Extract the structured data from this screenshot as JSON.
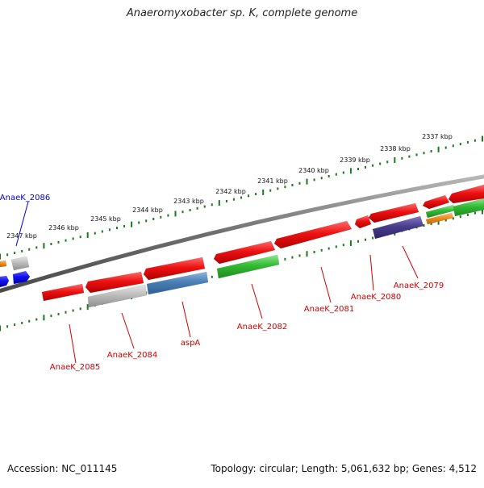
{
  "title": "Anaeromyxobacter sp. K, complete genome",
  "footer": {
    "accession": "Accession: NC_011145",
    "summary": "Topology: circular; Length: 5,061,632 bp; Genes: 4,512"
  },
  "ruler_labels": [
    "2337 kbp",
    "2338 kbp",
    "2339 kbp",
    "2340 kbp",
    "2341 kbp",
    "2342 kbp",
    "2343 kbp",
    "2344 kbp",
    "2345 kbp",
    "2346 kbp",
    "2347 kbp"
  ],
  "gene_labels": [
    {
      "text": "AnaeK_2086",
      "color": "#0000cc"
    },
    {
      "text": "AnaeK_2085",
      "color": "#cc0000"
    },
    {
      "text": "AnaeK_2084",
      "color": "#cc0000"
    },
    {
      "text": "aspA",
      "color": "#cc0000"
    },
    {
      "text": "AnaeK_2082",
      "color": "#cc0000"
    },
    {
      "text": "AnaeK_2081",
      "color": "#cc0000"
    },
    {
      "text": "AnaeK_2080",
      "color": "#cc0000"
    },
    {
      "text": "AnaeK_2079",
      "color": "#cc0000"
    }
  ],
  "colors": {
    "cds": "#ee1111",
    "backbone": "#777777",
    "ruler_ticks": "#1a7a1a",
    "gene_label_red": "#cc0000",
    "gene_label_blue": "#0000cc",
    "green_feature": "#33bb33",
    "blue_feature": "#4a7fb5",
    "purple_feature": "#4a3d8c",
    "gray_feature": "#aaaaaa",
    "orange_feature": "#f08c1e",
    "blue_gene": "#1010ee"
  }
}
